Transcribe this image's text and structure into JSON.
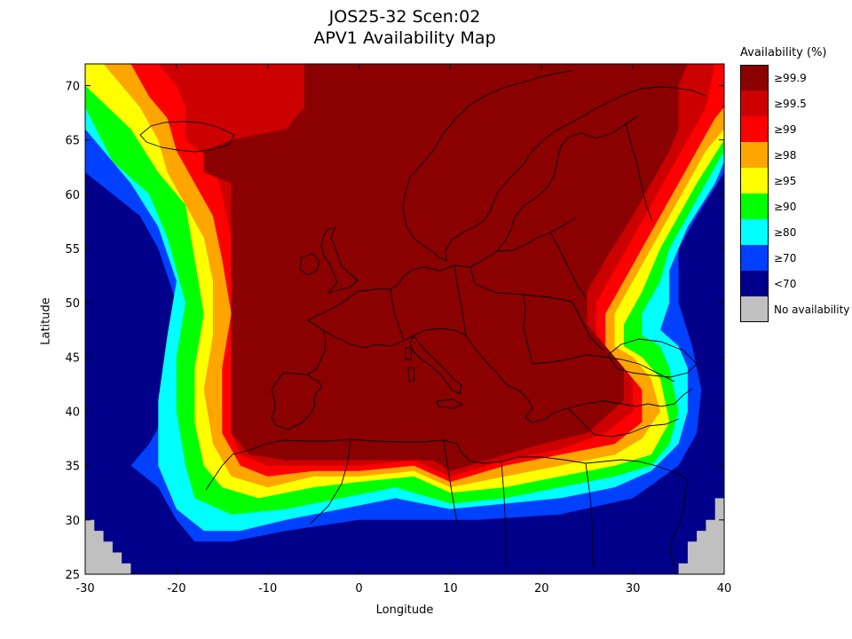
{
  "title_line1": "JOS25-32 Scen:02",
  "title_line2": "APV1 Availability Map",
  "chart_data": {
    "type": "heatmap",
    "title": "JOS25-32 Scen:02 APV1 Availability Map",
    "xlabel": "Longitude",
    "ylabel": "Latitude",
    "xlim": [
      -30,
      40
    ],
    "ylim": [
      25,
      72
    ],
    "xticks": [
      -30,
      -20,
      -10,
      0,
      10,
      20,
      30,
      40
    ],
    "yticks": [
      25,
      30,
      35,
      40,
      45,
      50,
      55,
      60,
      65,
      70
    ],
    "legend_title": "Availability (%)",
    "legend_position": "right",
    "levels": [
      {
        "label": "≥99.9",
        "color": "#8b0000"
      },
      {
        "label": "≥99.5",
        "color": "#cd0000"
      },
      {
        "label": "≥99",
        "color": "#ff0000"
      },
      {
        "label": "≥98",
        "color": "#ffa500"
      },
      {
        "label": "≥95",
        "color": "#ffff00"
      },
      {
        "label": "≥90",
        "color": "#00ff00"
      },
      {
        "label": "≥80",
        "color": "#00ffff"
      },
      {
        "label": "≥70",
        "color": "#0040ff"
      },
      {
        "label": "<70",
        "color": "#00008b"
      },
      {
        "label": "No availability",
        "color": "#c0c0c0"
      }
    ],
    "region_contours": [
      {
        "level": "<70",
        "polygon": [
          [
            -30,
            25
          ],
          [
            40,
            25
          ],
          [
            40,
            72
          ],
          [
            -30,
            72
          ]
        ]
      },
      {
        "level": "≥70",
        "polygon": [
          [
            -27,
            60
          ],
          [
            -24,
            58
          ],
          [
            -22,
            55
          ],
          [
            -20,
            50
          ],
          [
            -20,
            45
          ],
          [
            -21,
            40
          ],
          [
            -23,
            37
          ],
          [
            -25,
            35
          ],
          [
            -22,
            33
          ],
          [
            -20,
            30
          ],
          [
            -18,
            28
          ],
          [
            -14,
            28
          ],
          [
            -8,
            29
          ],
          [
            0,
            30
          ],
          [
            6,
            30
          ],
          [
            13,
            30
          ],
          [
            22,
            30.5
          ],
          [
            30,
            32
          ],
          [
            35,
            35
          ],
          [
            37,
            38
          ],
          [
            37.5,
            42
          ],
          [
            36.5,
            46
          ],
          [
            35,
            50
          ],
          [
            35,
            55
          ],
          [
            37,
            58
          ],
          [
            40,
            62
          ],
          [
            40,
            72
          ],
          [
            -30,
            72
          ],
          [
            -30,
            62
          ]
        ]
      },
      {
        "level": "≥80",
        "polygon": [
          [
            -29,
            65
          ],
          [
            -25,
            61
          ],
          [
            -22,
            57
          ],
          [
            -20,
            52
          ],
          [
            -21,
            47
          ],
          [
            -22,
            41
          ],
          [
            -22,
            35
          ],
          [
            -20,
            31
          ],
          [
            -17,
            29
          ],
          [
            -13,
            29
          ],
          [
            -8,
            30
          ],
          [
            -2,
            31
          ],
          [
            4,
            32
          ],
          [
            10,
            31
          ],
          [
            16,
            31.5
          ],
          [
            22,
            32
          ],
          [
            28,
            33
          ],
          [
            32,
            34.5
          ],
          [
            35,
            37
          ],
          [
            36,
            40
          ],
          [
            36,
            44
          ],
          [
            35,
            46
          ],
          [
            33,
            47.5
          ],
          [
            34,
            50
          ],
          [
            34,
            53
          ],
          [
            36,
            57
          ],
          [
            39,
            61
          ],
          [
            40,
            63
          ],
          [
            40,
            72
          ],
          [
            -30,
            72
          ],
          [
            -30,
            66
          ]
        ]
      },
      {
        "level": "≥90",
        "polygon": [
          [
            -30,
            68
          ],
          [
            -27,
            63
          ],
          [
            -23,
            60
          ],
          [
            -21,
            56
          ],
          [
            -19,
            50
          ],
          [
            -20,
            45
          ],
          [
            -20,
            40
          ],
          [
            -19,
            35
          ],
          [
            -18,
            32
          ],
          [
            -14,
            30.5
          ],
          [
            -8,
            31
          ],
          [
            -2,
            32
          ],
          [
            4,
            33
          ],
          [
            10,
            31.5
          ],
          [
            16,
            32
          ],
          [
            22,
            33
          ],
          [
            28,
            34
          ],
          [
            32,
            35
          ],
          [
            34,
            37
          ],
          [
            35,
            40
          ],
          [
            34,
            44
          ],
          [
            33,
            46
          ],
          [
            31,
            47
          ],
          [
            31,
            49
          ],
          [
            33,
            52
          ],
          [
            34,
            55
          ],
          [
            36,
            58
          ],
          [
            38,
            61
          ],
          [
            40,
            64
          ],
          [
            40,
            72
          ],
          [
            -30,
            72
          ]
        ]
      },
      {
        "level": "≥95",
        "polygon": [
          [
            -30,
            70
          ],
          [
            -25,
            66
          ],
          [
            -22,
            62
          ],
          [
            -19,
            59
          ],
          [
            -18,
            54
          ],
          [
            -17,
            49
          ],
          [
            -18,
            44
          ],
          [
            -18,
            39
          ],
          [
            -17,
            35
          ],
          [
            -15,
            33
          ],
          [
            -11,
            32
          ],
          [
            -5,
            33
          ],
          [
            0,
            33.5
          ],
          [
            6,
            34
          ],
          [
            10,
            32.5
          ],
          [
            16,
            33
          ],
          [
            22,
            34
          ],
          [
            28,
            35
          ],
          [
            32,
            36
          ],
          [
            34,
            39
          ],
          [
            33,
            43
          ],
          [
            31,
            45
          ],
          [
            29,
            46
          ],
          [
            29,
            48
          ],
          [
            31,
            51
          ],
          [
            33,
            55
          ],
          [
            35,
            58
          ],
          [
            37,
            61
          ],
          [
            40,
            65
          ],
          [
            40,
            72
          ],
          [
            -30,
            72
          ]
        ]
      },
      {
        "level": "≥98",
        "polygon": [
          [
            -28,
            72
          ],
          [
            -24,
            68
          ],
          [
            -22,
            65
          ],
          [
            -21,
            62
          ],
          [
            -19,
            59
          ],
          [
            -17,
            56
          ],
          [
            -16,
            52
          ],
          [
            -16,
            47
          ],
          [
            -17,
            42
          ],
          [
            -16,
            37
          ],
          [
            -14,
            34
          ],
          [
            -10,
            33
          ],
          [
            -5,
            34
          ],
          [
            0,
            34
          ],
          [
            6,
            34.5
          ],
          [
            10,
            33
          ],
          [
            16,
            34
          ],
          [
            22,
            35
          ],
          [
            28,
            36
          ],
          [
            31,
            37.5
          ],
          [
            33,
            40
          ],
          [
            32,
            43
          ],
          [
            30,
            45
          ],
          [
            28,
            46
          ],
          [
            28,
            49
          ],
          [
            30,
            52
          ],
          [
            32,
            55
          ],
          [
            34,
            58
          ],
          [
            36,
            61
          ],
          [
            38,
            64
          ],
          [
            40,
            66
          ],
          [
            40,
            72
          ]
        ]
      },
      {
        "level": "≥99",
        "polygon": [
          [
            -25,
            72
          ],
          [
            -23,
            69
          ],
          [
            -21,
            67
          ],
          [
            -20,
            64
          ],
          [
            -18,
            61
          ],
          [
            -16,
            58
          ],
          [
            -15,
            54
          ],
          [
            -14,
            49
          ],
          [
            -15,
            44
          ],
          [
            -15,
            38
          ],
          [
            -13,
            35
          ],
          [
            -10,
            34
          ],
          [
            -5,
            34.5
          ],
          [
            0,
            34.5
          ],
          [
            6,
            35
          ],
          [
            10,
            33.5
          ],
          [
            16,
            35
          ],
          [
            22,
            36
          ],
          [
            28,
            37
          ],
          [
            31,
            39
          ],
          [
            31,
            42
          ],
          [
            29,
            44
          ],
          [
            27,
            46
          ],
          [
            27,
            49
          ],
          [
            29,
            52
          ],
          [
            31,
            55
          ],
          [
            33,
            58
          ],
          [
            35,
            61
          ],
          [
            37,
            64
          ],
          [
            39,
            67
          ],
          [
            40,
            68
          ],
          [
            40,
            72
          ]
        ]
      },
      {
        "level": "≥99.5",
        "polygon": [
          [
            -22,
            72
          ],
          [
            -20,
            70
          ],
          [
            -19,
            68
          ],
          [
            -19,
            65
          ],
          [
            -16,
            63
          ],
          [
            -15,
            60
          ],
          [
            -14,
            56
          ],
          [
            -14,
            50
          ],
          [
            -14,
            44
          ],
          [
            -14,
            38
          ],
          [
            -13,
            36
          ],
          [
            -10,
            35
          ],
          [
            -5,
            35
          ],
          [
            0,
            35
          ],
          [
            6,
            35.5
          ],
          [
            10,
            34
          ],
          [
            16,
            35.5
          ],
          [
            22,
            36.5
          ],
          [
            27,
            38
          ],
          [
            30,
            40
          ],
          [
            30,
            43
          ],
          [
            28,
            45
          ],
          [
            26,
            47
          ],
          [
            26,
            50
          ],
          [
            28,
            53
          ],
          [
            30,
            56
          ],
          [
            32,
            59
          ],
          [
            34,
            62
          ],
          [
            36,
            65
          ],
          [
            38,
            68
          ],
          [
            39,
            72
          ]
        ]
      },
      {
        "level": "≥99.9",
        "polygon": [
          [
            -6,
            72
          ],
          [
            -6,
            68
          ],
          [
            -8,
            66
          ],
          [
            -14,
            65
          ],
          [
            -17,
            64
          ],
          [
            -17,
            62
          ],
          [
            -14,
            61
          ],
          [
            -14,
            55
          ],
          [
            -14,
            48
          ],
          [
            -14,
            42
          ],
          [
            -14,
            38
          ],
          [
            -12,
            36
          ],
          [
            -8,
            35.5
          ],
          [
            -3,
            35.5
          ],
          [
            3,
            35.5
          ],
          [
            8,
            35.5
          ],
          [
            10,
            34.5
          ],
          [
            14,
            35.5
          ],
          [
            20,
            37
          ],
          [
            25,
            38
          ],
          [
            29,
            41
          ],
          [
            29,
            44
          ],
          [
            27,
            46
          ],
          [
            25,
            48
          ],
          [
            25,
            51
          ],
          [
            27,
            54
          ],
          [
            30,
            58
          ],
          [
            32,
            61
          ],
          [
            34,
            64
          ],
          [
            35,
            66
          ],
          [
            35,
            70
          ],
          [
            36,
            72
          ]
        ]
      },
      {
        "level": "No availability",
        "polygon": [
          [
            -30,
            25
          ],
          [
            -30,
            30
          ],
          [
            -29,
            30
          ],
          [
            -29,
            29
          ],
          [
            -28,
            29
          ],
          [
            -28,
            28
          ],
          [
            -27,
            28
          ],
          [
            -27,
            27
          ],
          [
            -26,
            27
          ],
          [
            -26,
            26
          ],
          [
            -25,
            26
          ],
          [
            -25,
            25
          ]
        ]
      },
      {
        "level": "No availability",
        "polygon": [
          [
            40,
            25
          ],
          [
            40,
            32
          ],
          [
            39,
            32
          ],
          [
            39,
            30
          ],
          [
            38,
            30
          ],
          [
            38,
            29
          ],
          [
            37,
            29
          ],
          [
            37,
            28
          ],
          [
            36,
            28
          ],
          [
            36,
            26
          ],
          [
            35,
            26
          ],
          [
            35,
            25
          ]
        ]
      }
    ]
  }
}
